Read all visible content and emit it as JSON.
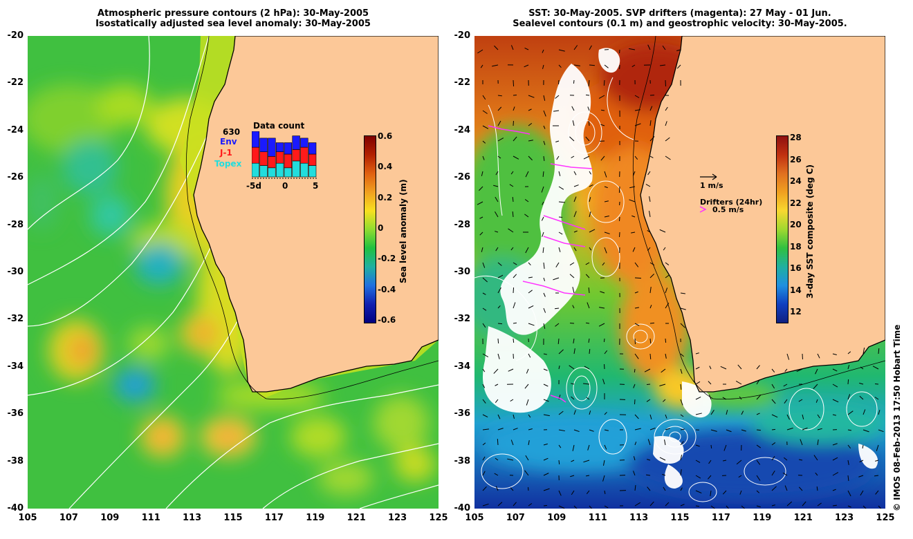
{
  "left_panel": {
    "title_line1": "Atmospheric pressure contours (2 hPa): 30-May-2005",
    "title_line2": "Isostatically adjusted sea level anomaly: 30-May-2005",
    "colorbar": {
      "label": "Sea level anomaly (m)",
      "ticks": [
        "0.6",
        "0.4",
        "0.2",
        "0",
        "-0.2",
        "-0.4",
        "-0.6"
      ]
    },
    "data_count": {
      "title": "Data count",
      "max": "630",
      "legend": [
        {
          "label": "Env",
          "color": "#1a1aff"
        },
        {
          "label": "J-1",
          "color": "#ff1a1a"
        },
        {
          "label": "Topex",
          "color": "#22dddd"
        }
      ],
      "xticks": [
        "-5d",
        "0",
        "5"
      ],
      "bars": [
        {
          "topex": 0.3,
          "j1": 0.35,
          "env": 0.35
        },
        {
          "topex": 0.25,
          "j1": 0.3,
          "env": 0.3
        },
        {
          "topex": 0.2,
          "j1": 0.25,
          "env": 0.4
        },
        {
          "topex": 0.3,
          "j1": 0.25,
          "env": 0.2
        },
        {
          "topex": 0.2,
          "j1": 0.3,
          "env": 0.25
        },
        {
          "topex": 0.35,
          "j1": 0.25,
          "env": 0.3
        },
        {
          "topex": 0.3,
          "j1": 0.35,
          "env": 0.2
        },
        {
          "topex": 0.25,
          "j1": 0.25,
          "env": 0.25
        }
      ]
    }
  },
  "right_panel": {
    "title_line1": "SST: 30-May-2005. SVP drifters (magenta): 27 May - 01 Jun.",
    "title_line2": "Sealevel contours (0.1 m) and geostrophic velocity: 30-May-2005.",
    "colorbar": {
      "label": "3-day SST composite (deg C)",
      "ticks": [
        "28",
        "26",
        "24",
        "22",
        "20",
        "18",
        "16",
        "14",
        "12"
      ]
    },
    "velocity_scale": "1 m/s",
    "drifters_label": "Drifters (24hr)",
    "drifter_scale": "0.5 m/s",
    "drifter_color": "#ff33ff"
  },
  "axes": {
    "y_ticks": [
      "-20",
      "-22",
      "-24",
      "-26",
      "-28",
      "-30",
      "-32",
      "-34",
      "-36",
      "-38",
      "-40"
    ],
    "x_ticks": [
      "105",
      "107",
      "109",
      "111",
      "113",
      "115",
      "117",
      "119",
      "121",
      "123",
      "125"
    ]
  },
  "footer": {
    "credit": "© IMOS 08-Feb-2013 17:50 Hobart Time"
  },
  "colors": {
    "land": "#fcc898",
    "ocean_left": "#3ec23e",
    "coast": "#000000"
  }
}
